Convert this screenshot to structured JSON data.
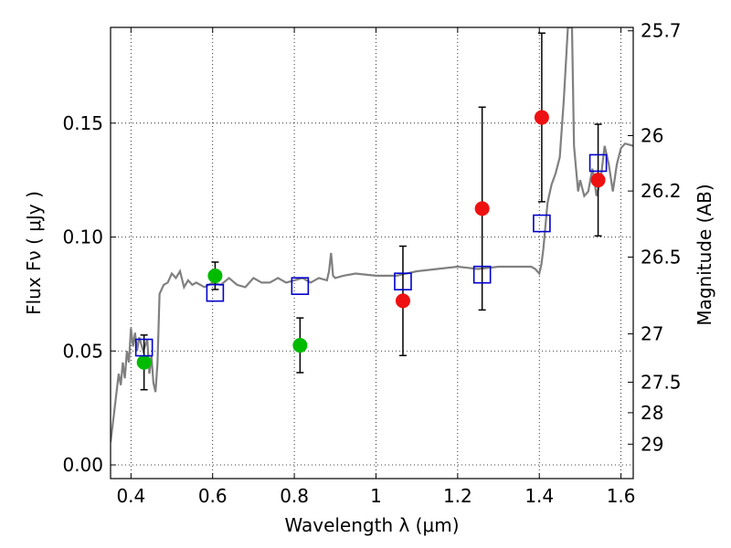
{
  "chart_data": {
    "type": "scatter",
    "xlabel": "Wavelength  λ (μm)",
    "ylabel": "Flux  Fν  ( μJy )",
    "y2label": "Magnitude (AB)",
    "xlim": [
      0.35,
      1.63
    ],
    "ylim": [
      -0.006,
      0.192
    ],
    "grid": true,
    "x_ticks": [
      0.4,
      0.6,
      0.8,
      1.0,
      1.2,
      1.4,
      1.6
    ],
    "x_tick_labels": [
      "0.4",
      "0.6",
      "0.8",
      "1",
      "1.2",
      "1.4",
      "1.6"
    ],
    "y_ticks": [
      0.0,
      0.05,
      0.1,
      0.15
    ],
    "y_tick_labels": [
      "0.00",
      "0.05",
      "0.10",
      "0.15"
    ],
    "y2_ticks": [
      {
        "label": "25.7",
        "flux": 0.1905
      },
      {
        "label": "26",
        "flux": 0.1445
      },
      {
        "label": "26.2",
        "flux": 0.1202
      },
      {
        "label": "26.5",
        "flux": 0.0912
      },
      {
        "label": "27",
        "flux": 0.0575
      },
      {
        "label": "27.5",
        "flux": 0.0363
      },
      {
        "label": "28",
        "flux": 0.0229
      },
      {
        "label": "29",
        "flux": 0.0091
      }
    ],
    "spectrum": {
      "color": "#808080",
      "x": [
        0.35,
        0.36,
        0.37,
        0.375,
        0.38,
        0.385,
        0.39,
        0.395,
        0.4,
        0.405,
        0.41,
        0.415,
        0.42,
        0.43,
        0.44,
        0.445,
        0.45,
        0.455,
        0.46,
        0.465,
        0.47,
        0.48,
        0.49,
        0.5,
        0.51,
        0.52,
        0.53,
        0.54,
        0.55,
        0.56,
        0.58,
        0.6,
        0.62,
        0.64,
        0.66,
        0.68,
        0.7,
        0.72,
        0.74,
        0.76,
        0.78,
        0.8,
        0.82,
        0.84,
        0.86,
        0.88,
        0.885,
        0.89,
        0.895,
        0.9,
        0.92,
        0.95,
        1.0,
        1.05,
        1.1,
        1.15,
        1.2,
        1.25,
        1.3,
        1.35,
        1.38,
        1.39,
        1.4,
        1.405,
        1.41,
        1.42,
        1.43,
        1.44,
        1.45,
        1.46,
        1.47,
        1.48,
        1.485,
        1.49,
        1.495,
        1.5,
        1.51,
        1.52,
        1.53,
        1.535,
        1.54,
        1.55,
        1.56,
        1.57,
        1.58,
        1.59,
        1.6,
        1.61,
        1.63
      ],
      "y": [
        0.01,
        0.025,
        0.04,
        0.035,
        0.045,
        0.038,
        0.05,
        0.045,
        0.06,
        0.052,
        0.058,
        0.05,
        0.056,
        0.05,
        0.055,
        0.04,
        0.048,
        0.036,
        0.032,
        0.045,
        0.075,
        0.079,
        0.08,
        0.084,
        0.082,
        0.085,
        0.078,
        0.081,
        0.079,
        0.08,
        0.078,
        0.08,
        0.079,
        0.082,
        0.079,
        0.078,
        0.082,
        0.08,
        0.08,
        0.082,
        0.08,
        0.081,
        0.082,
        0.08,
        0.082,
        0.081,
        0.085,
        0.093,
        0.083,
        0.082,
        0.083,
        0.084,
        0.083,
        0.083,
        0.085,
        0.086,
        0.087,
        0.086,
        0.087,
        0.087,
        0.087,
        0.086,
        0.084,
        0.088,
        0.095,
        0.115,
        0.123,
        0.128,
        0.135,
        0.16,
        0.192,
        0.192,
        0.14,
        0.13,
        0.12,
        0.125,
        0.118,
        0.12,
        0.13,
        0.125,
        0.118,
        0.125,
        0.14,
        0.132,
        0.12,
        0.132,
        0.139,
        0.141,
        0.14
      ]
    },
    "series": [
      {
        "marker": "circle",
        "color": "#00bb00",
        "points": [
          {
            "x": 0.432,
            "y": 0.045,
            "err": 0.012
          },
          {
            "x": 0.606,
            "y": 0.083,
            "err": 0.006
          },
          {
            "x": 0.814,
            "y": 0.0525,
            "err": 0.012
          }
        ]
      },
      {
        "marker": "circle",
        "color": "#ee1111",
        "points": [
          {
            "x": 1.066,
            "y": 0.072,
            "err": 0.024
          },
          {
            "x": 1.26,
            "y": 0.1125,
            "err": 0.0445
          },
          {
            "x": 1.406,
            "y": 0.1525,
            "err": 0.037
          },
          {
            "x": 1.544,
            "y": 0.125,
            "err": 0.0245
          }
        ]
      },
      {
        "marker": "open-square",
        "color": "#0000cc",
        "points": [
          {
            "x": 0.432,
            "y": 0.0515
          },
          {
            "x": 0.606,
            "y": 0.0755
          },
          {
            "x": 0.814,
            "y": 0.0785
          },
          {
            "x": 1.066,
            "y": 0.0805
          },
          {
            "x": 1.26,
            "y": 0.0835
          },
          {
            "x": 1.406,
            "y": 0.106
          },
          {
            "x": 1.544,
            "y": 0.1325
          }
        ]
      }
    ]
  }
}
